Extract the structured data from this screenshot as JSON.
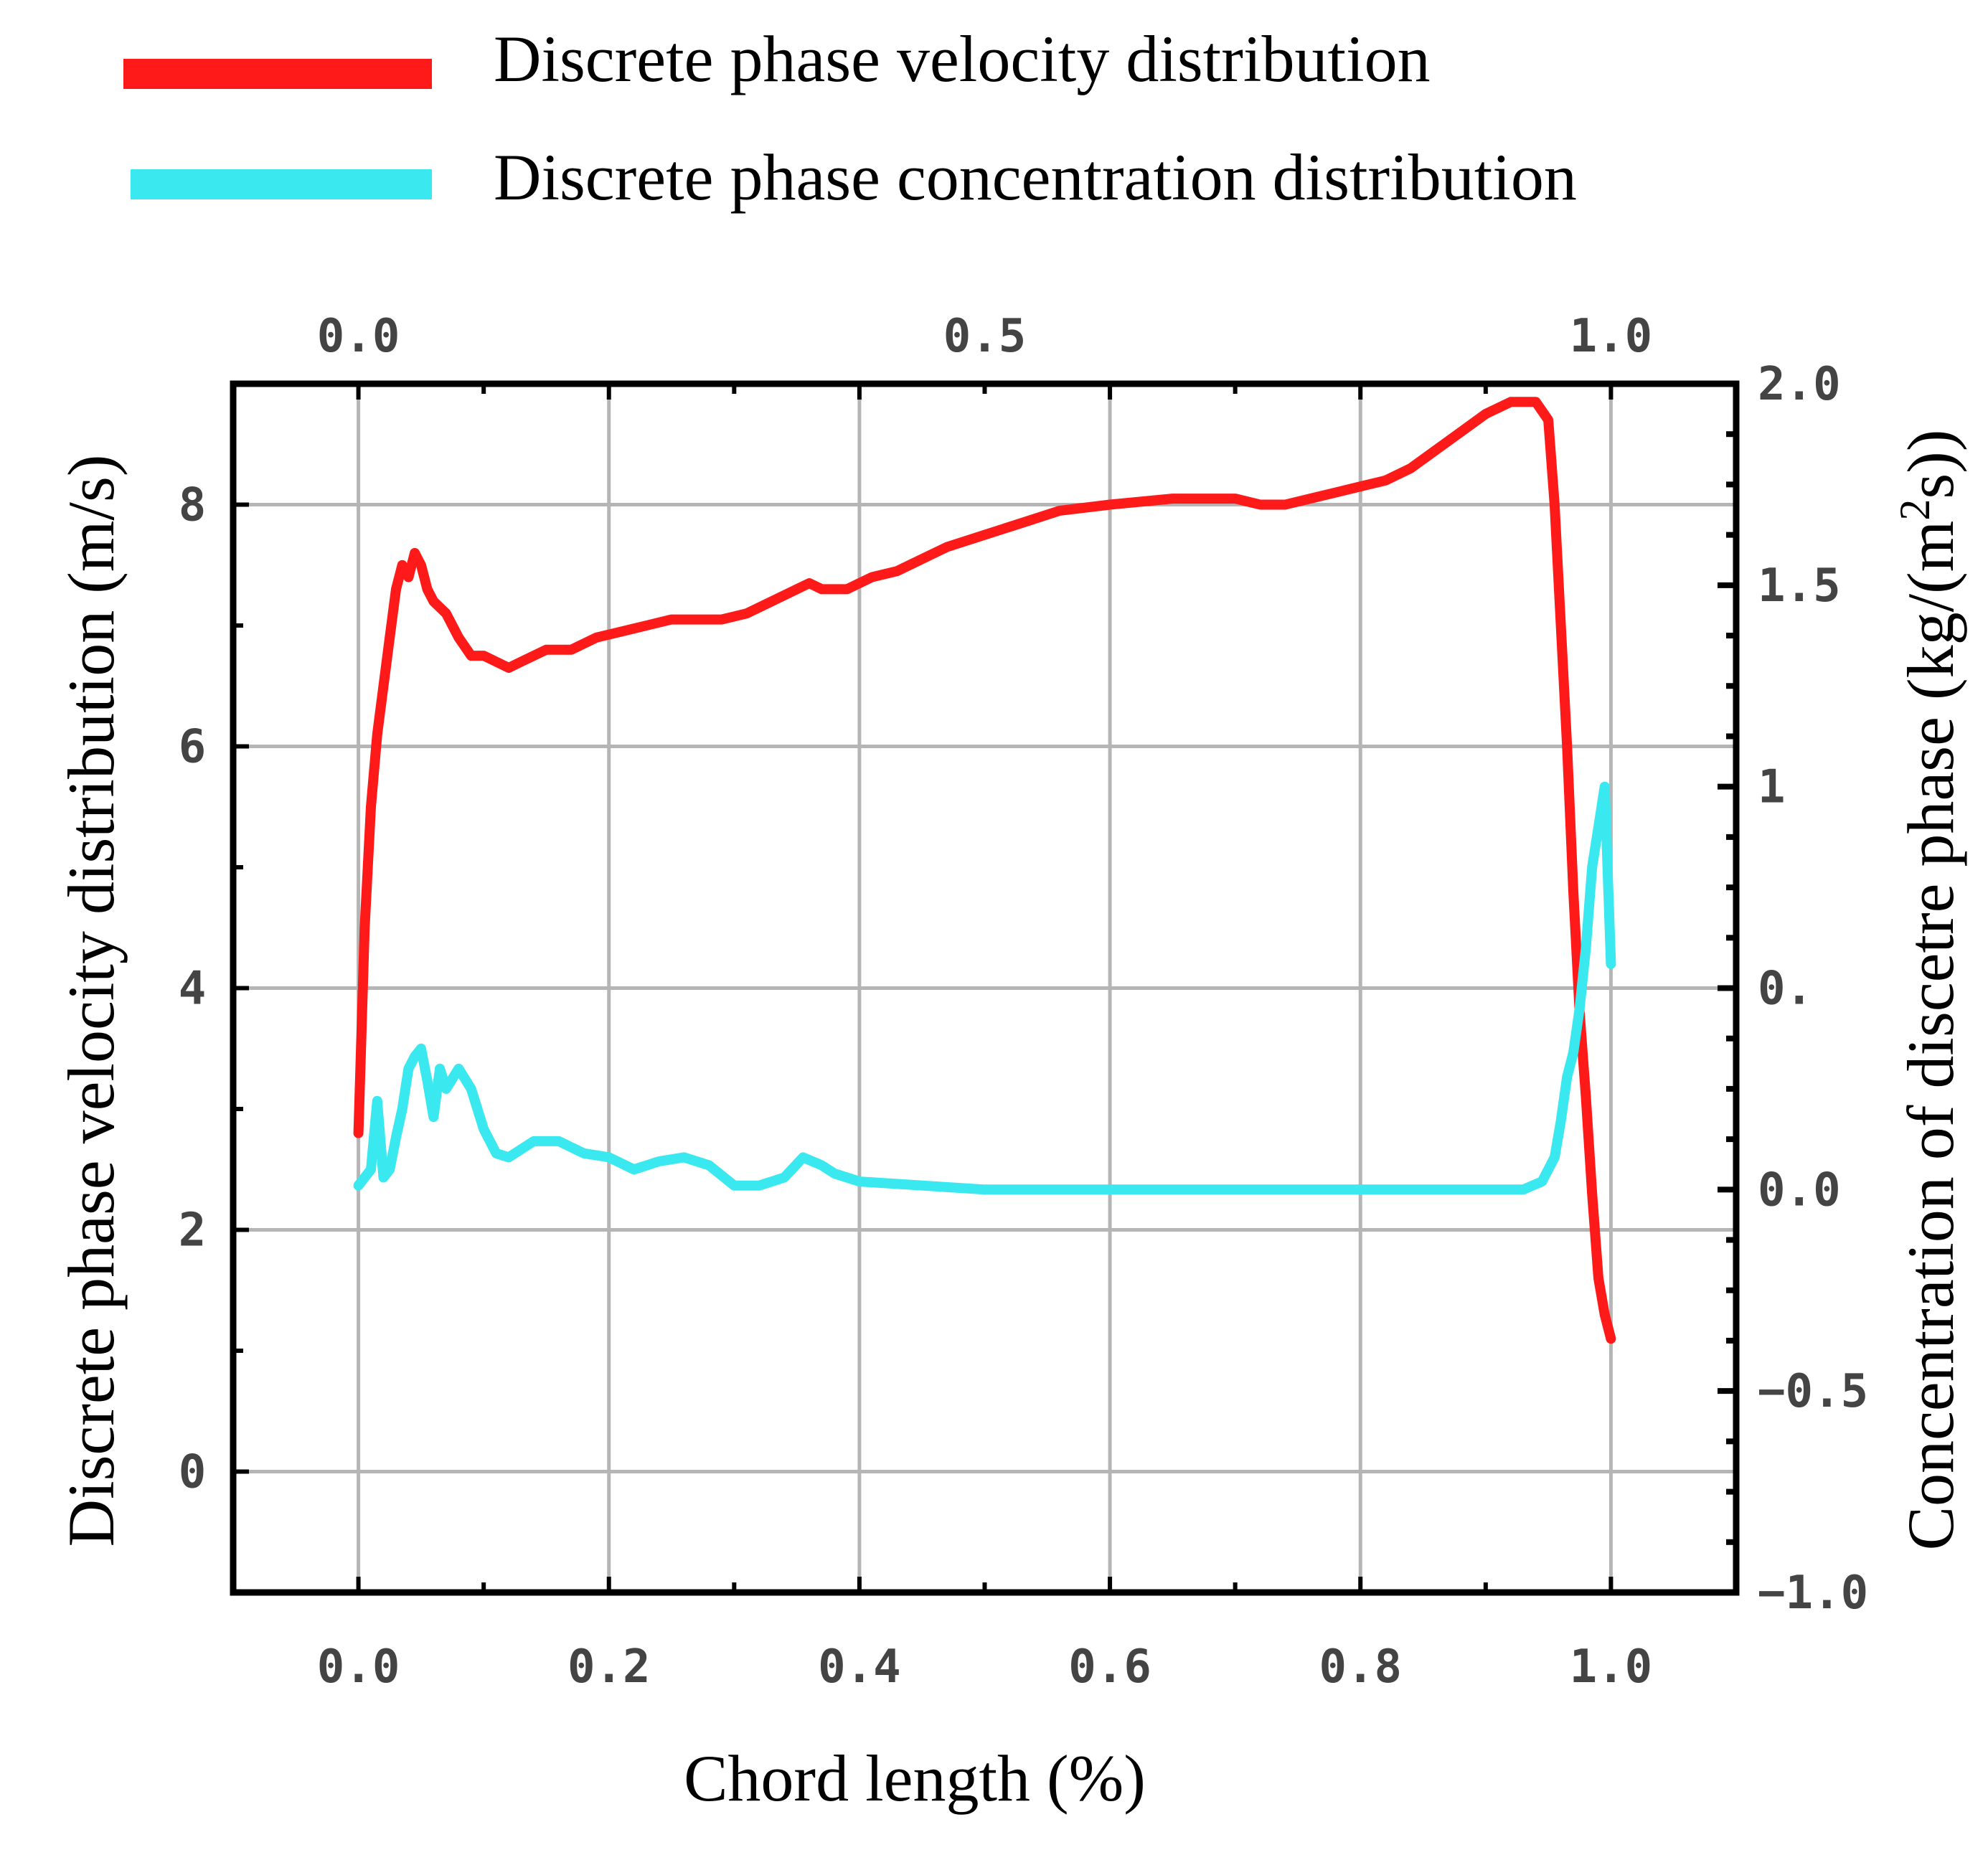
{
  "chart_data": {
    "type": "line",
    "title": "",
    "xlabel": "Chord length (%)",
    "ylabel": "Discrete phase velocity distribution (m/s)",
    "y2label_prefix": "Concentration of discetre phase (kg/(m",
    "y2label_sup": "2",
    "y2label_suffix": "s))",
    "xlim": [
      -0.1,
      1.1
    ],
    "ylim": [
      -1,
      9
    ],
    "y2lim": [
      -1.0,
      2.0
    ],
    "grid": true,
    "legend_position": "top",
    "x_ticks": [
      0.0,
      0.2,
      0.4,
      0.6,
      0.8,
      1.0
    ],
    "x_tick_labels": [
      "0.0",
      "0.2",
      "0.4",
      "0.6",
      "0.8",
      "1.0"
    ],
    "x2_ticks": [
      0.0,
      0.5,
      1.0
    ],
    "x2_tick_labels": [
      "0.0",
      "0.5",
      "1.0"
    ],
    "y_ticks": [
      0,
      2,
      4,
      6,
      8
    ],
    "y_tick_labels": [
      "0",
      "2",
      "4",
      "6",
      "8"
    ],
    "y2_ticks": [
      -1.0,
      -0.5,
      0.0,
      0.5,
      1.0,
      1.5,
      2.0
    ],
    "y2_tick_labels": [
      "-1.0",
      "-0.5",
      "0.0",
      "0.",
      "1",
      "1.5",
      "2.0"
    ],
    "series": [
      {
        "name": "Discrete phase velocity distribution",
        "color": "#ff1a1a",
        "axis": "left",
        "x": [
          0.0,
          0.005,
          0.01,
          0.015,
          0.02,
          0.025,
          0.03,
          0.035,
          0.04,
          0.045,
          0.05,
          0.055,
          0.06,
          0.07,
          0.08,
          0.09,
          0.1,
          0.11,
          0.12,
          0.13,
          0.15,
          0.17,
          0.19,
          0.21,
          0.23,
          0.25,
          0.27,
          0.29,
          0.31,
          0.33,
          0.35,
          0.36,
          0.37,
          0.39,
          0.41,
          0.43,
          0.45,
          0.47,
          0.5,
          0.53,
          0.56,
          0.6,
          0.65,
          0.7,
          0.72,
          0.74,
          0.76,
          0.78,
          0.8,
          0.82,
          0.84,
          0.86,
          0.88,
          0.9,
          0.92,
          0.94,
          0.95,
          0.955,
          0.96,
          0.965,
          0.97,
          0.975,
          0.98,
          0.985,
          0.99,
          0.995,
          1.0
        ],
        "values": [
          2.8,
          4.5,
          5.5,
          6.1,
          6.5,
          6.9,
          7.3,
          7.5,
          7.4,
          7.6,
          7.5,
          7.3,
          7.2,
          7.1,
          6.9,
          6.75,
          6.75,
          6.7,
          6.65,
          6.7,
          6.8,
          6.8,
          6.9,
          6.95,
          7.0,
          7.05,
          7.05,
          7.05,
          7.1,
          7.2,
          7.3,
          7.35,
          7.3,
          7.3,
          7.4,
          7.45,
          7.55,
          7.65,
          7.75,
          7.85,
          7.95,
          8.0,
          8.05,
          8.05,
          8.0,
          8.0,
          8.05,
          8.1,
          8.15,
          8.2,
          8.3,
          8.45,
          8.6,
          8.75,
          8.85,
          8.85,
          8.7,
          8.0,
          7.0,
          6.0,
          4.8,
          3.8,
          3.1,
          2.3,
          1.6,
          1.3,
          1.1
        ]
      },
      {
        "name": "Discrete phase concentration distribution",
        "color": "#3ae8f0",
        "axis": "right",
        "x": [
          0.0,
          0.005,
          0.01,
          0.015,
          0.02,
          0.025,
          0.03,
          0.035,
          0.04,
          0.045,
          0.05,
          0.055,
          0.06,
          0.065,
          0.07,
          0.08,
          0.09,
          0.1,
          0.11,
          0.12,
          0.14,
          0.16,
          0.18,
          0.2,
          0.22,
          0.24,
          0.26,
          0.28,
          0.3,
          0.32,
          0.34,
          0.355,
          0.37,
          0.38,
          0.4,
          0.45,
          0.5,
          0.6,
          0.7,
          0.8,
          0.9,
          0.93,
          0.945,
          0.955,
          0.96,
          0.965,
          0.97,
          0.975,
          0.98,
          0.985,
          0.99,
          0.995,
          1.0
        ],
        "values": [
          0.01,
          0.03,
          0.05,
          0.22,
          0.03,
          0.05,
          0.13,
          0.2,
          0.3,
          0.33,
          0.35,
          0.27,
          0.18,
          0.3,
          0.25,
          0.3,
          0.25,
          0.15,
          0.09,
          0.08,
          0.12,
          0.12,
          0.09,
          0.08,
          0.05,
          0.07,
          0.08,
          0.06,
          0.01,
          0.01,
          0.03,
          0.08,
          0.06,
          0.04,
          0.02,
          0.01,
          0.0,
          0.0,
          0.0,
          0.0,
          0.0,
          0.0,
          0.02,
          0.08,
          0.17,
          0.28,
          0.34,
          0.45,
          0.6,
          0.8,
          0.9,
          1.0,
          0.56
        ]
      }
    ]
  }
}
